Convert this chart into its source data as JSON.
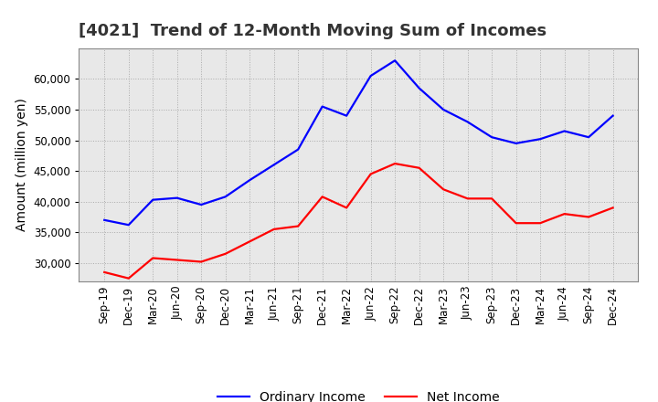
{
  "title": "[4021]  Trend of 12-Month Moving Sum of Incomes",
  "ylabel": "Amount (million yen)",
  "background_color": "#ffffff",
  "plot_background_color": "#e8e8e8",
  "grid_color": "#aaaaaa",
  "x_labels": [
    "Sep-19",
    "Dec-19",
    "Mar-20",
    "Jun-20",
    "Sep-20",
    "Dec-20",
    "Mar-21",
    "Jun-21",
    "Sep-21",
    "Dec-21",
    "Mar-22",
    "Jun-22",
    "Sep-22",
    "Dec-22",
    "Mar-23",
    "Jun-23",
    "Sep-23",
    "Dec-23",
    "Mar-24",
    "Jun-24",
    "Sep-24",
    "Dec-24"
  ],
  "ordinary_income": [
    37000,
    36200,
    40300,
    40600,
    39500,
    40800,
    43500,
    46000,
    48500,
    55500,
    54000,
    60500,
    63000,
    58500,
    55000,
    53000,
    50500,
    49500,
    50200,
    51500,
    50500,
    54000
  ],
  "net_income": [
    28500,
    27500,
    30800,
    30500,
    30200,
    31500,
    33500,
    35500,
    36000,
    40800,
    39000,
    44500,
    46200,
    45500,
    42000,
    40500,
    40500,
    36500,
    36500,
    38000,
    37500,
    39000
  ],
  "ordinary_color": "#0000ff",
  "net_color": "#ff0000",
  "ylim_min": 27000,
  "ylim_max": 65000,
  "yticks": [
    30000,
    35000,
    40000,
    45000,
    50000,
    55000,
    60000
  ],
  "title_fontsize": 13,
  "axis_fontsize": 10,
  "tick_fontsize": 8.5,
  "legend_fontsize": 10,
  "line_width": 1.6
}
